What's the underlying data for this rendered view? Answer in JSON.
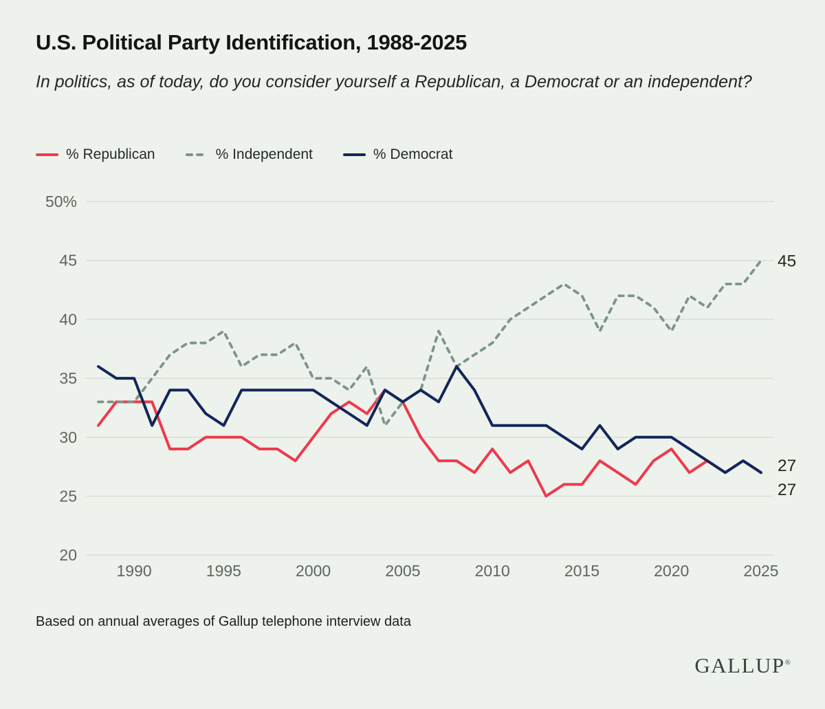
{
  "header": {
    "title": "U.S. Political Party Identification, 1988-2025",
    "subtitle": "In politics, as of today, do you consider yourself a Republican, a Democrat or an independent?"
  },
  "legend": {
    "items": [
      {
        "label": "% Republican",
        "color": "#ed3a4c",
        "dash": false
      },
      {
        "label": "% Independent",
        "color": "#7d948c",
        "dash": true
      },
      {
        "label": "% Democrat",
        "color": "#13265a",
        "dash": false
      }
    ]
  },
  "chart_data": {
    "type": "line",
    "title": "U.S. Political Party Identification, 1988-2025",
    "x": [
      1988,
      1989,
      1990,
      1991,
      1992,
      1993,
      1994,
      1995,
      1996,
      1997,
      1998,
      1999,
      2000,
      2001,
      2002,
      2003,
      2004,
      2005,
      2006,
      2007,
      2008,
      2009,
      2010,
      2011,
      2012,
      2013,
      2014,
      2015,
      2016,
      2017,
      2018,
      2019,
      2020,
      2021,
      2022,
      2023,
      2024,
      2025
    ],
    "series": [
      {
        "name": "% Republican",
        "color": "#ed3a4c",
        "dash": false,
        "values": [
          31,
          33,
          33,
          33,
          29,
          29,
          30,
          30,
          30,
          29,
          29,
          28,
          30,
          32,
          33,
          32,
          34,
          33,
          30,
          28,
          28,
          27,
          29,
          27,
          28,
          25,
          26,
          26,
          28,
          27,
          26,
          28,
          29,
          27,
          28,
          27,
          28,
          27
        ]
      },
      {
        "name": "% Independent",
        "color": "#7d948c",
        "dash": true,
        "values": [
          33,
          33,
          33,
          35,
          37,
          38,
          38,
          39,
          36,
          37,
          37,
          38,
          35,
          35,
          34,
          36,
          31,
          33,
          34,
          39,
          36,
          37,
          38,
          40,
          41,
          42,
          43,
          42,
          39,
          42,
          42,
          41,
          39,
          42,
          41,
          43,
          43,
          45
        ]
      },
      {
        "name": "% Democrat",
        "color": "#13265a",
        "dash": false,
        "values": [
          36,
          35,
          35,
          31,
          34,
          34,
          32,
          31,
          34,
          34,
          34,
          34,
          34,
          33,
          32,
          31,
          34,
          33,
          34,
          33,
          36,
          34,
          31,
          31,
          31,
          31,
          30,
          29,
          31,
          29,
          30,
          30,
          30,
          29,
          28,
          27,
          28,
          27
        ]
      }
    ],
    "ylim": [
      20,
      50
    ],
    "yticks": [
      20,
      25,
      30,
      35,
      40,
      45,
      50
    ],
    "ytick_labels": [
      "20",
      "25",
      "30",
      "35",
      "40",
      "45",
      "50%"
    ],
    "xticks": [
      1990,
      1995,
      2000,
      2005,
      2010,
      2015,
      2020,
      2025
    ],
    "grid": "horizontal",
    "legend_position": "top",
    "end_labels": [
      {
        "text": "45",
        "series": "% Independent",
        "value": 45
      },
      {
        "text": "27",
        "series": "% Democrat",
        "value": 27
      },
      {
        "text": "27",
        "series": "% Republican",
        "value": 27
      }
    ],
    "colors": {
      "background": "#edf2ec",
      "gridline": "#d8ded6",
      "tick_text": "#60665f",
      "end_label_text": "#23281f"
    }
  },
  "footnote": "Based on annual averages of Gallup telephone interview data",
  "logo": {
    "text": "GALLUP",
    "reg": "®"
  }
}
